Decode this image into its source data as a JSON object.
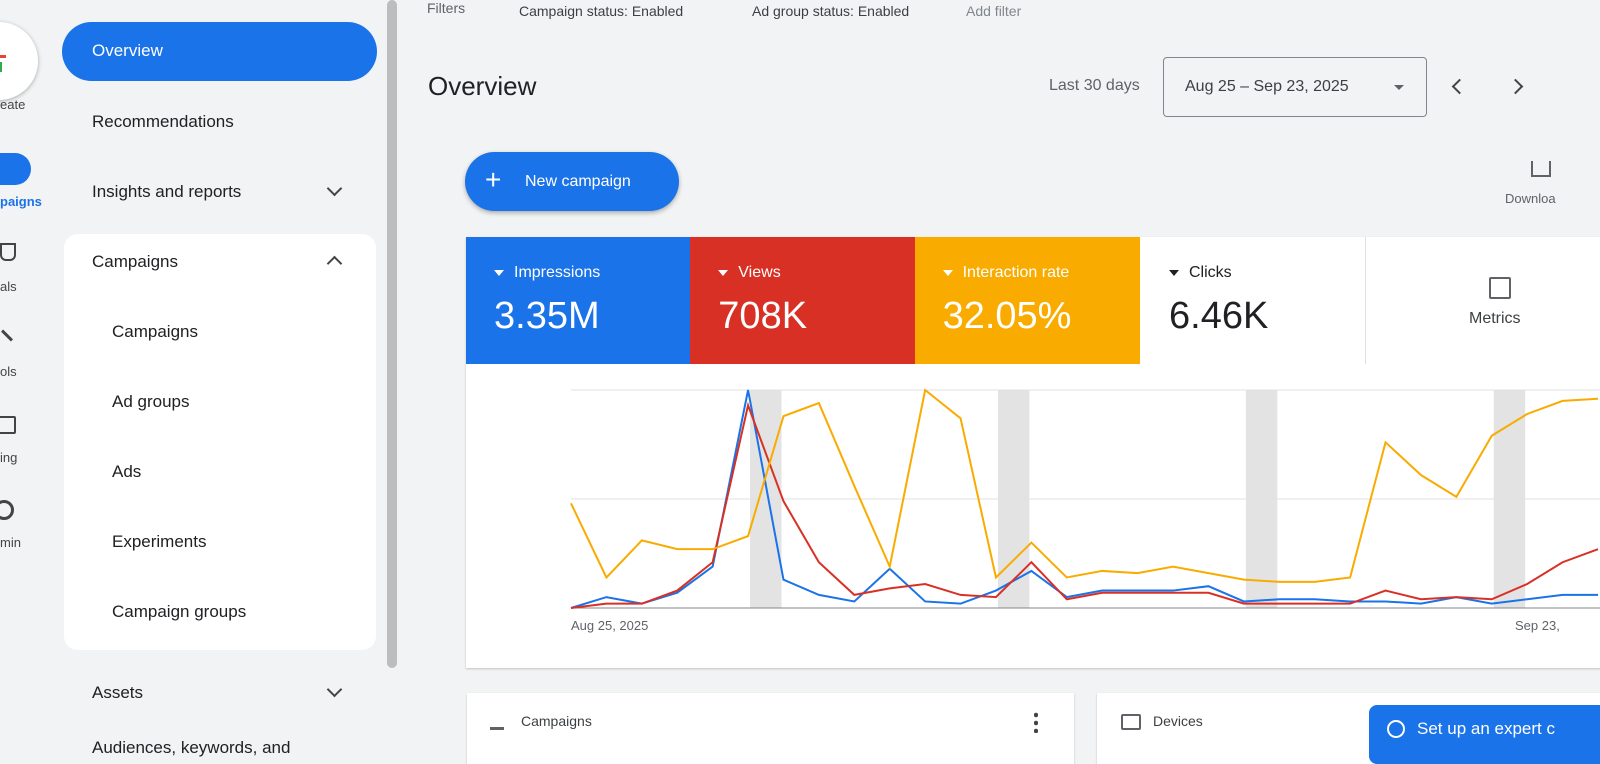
{
  "rail": {
    "items": [
      "eate",
      "paigns",
      "als",
      "ols",
      "ing",
      "min"
    ]
  },
  "nav": {
    "overview": "Overview",
    "recommendations": "Recommendations",
    "insights": "Insights and reports",
    "campaigns_group": "Campaigns",
    "sub_items": [
      "Campaigns",
      "Ad groups",
      "Ads",
      "Experiments",
      "Campaign groups"
    ],
    "assets": "Assets",
    "audiences": "Audiences, keywords, and"
  },
  "filters": {
    "label": "Filters",
    "chips": [
      "Campaign status: Enabled",
      "Ad group status: Enabled"
    ],
    "add": "Add filter"
  },
  "header": {
    "title": "Overview",
    "range_label": "Last 30 days",
    "date_range": "Aug 25 – Sep 23, 2025"
  },
  "actions": {
    "new_campaign": "New campaign",
    "download": "Downloa"
  },
  "scorecards": [
    {
      "name": "Clicks",
      "total": "6.46K"
    }
  ],
  "metrics_button": "Metrics",
  "chart_data": {
    "type": "line",
    "categories": [
      "Aug 25, 2025",
      null,
      null,
      null,
      null,
      null,
      null,
      null,
      null,
      null,
      null,
      null,
      null,
      null,
      null,
      null,
      null,
      null,
      null,
      null,
      null,
      null,
      null,
      null,
      null,
      null,
      null,
      null,
      null,
      "Sep 23,"
    ],
    "ylim": [
      0,
      100
    ],
    "series": [
      {
        "name": "Impressions",
        "total": "3.35M",
        "color": "#1a73e8",
        "values": [
          0,
          5,
          2,
          7,
          19,
          100,
          13,
          6,
          3,
          18,
          3,
          2,
          8,
          17,
          5,
          8,
          8,
          8,
          10,
          3,
          4,
          4,
          3,
          3,
          2,
          5,
          2,
          4,
          6,
          6
        ]
      },
      {
        "name": "Views",
        "total": "708K",
        "color": "#d93025",
        "values": [
          0,
          2,
          2,
          8,
          21,
          93,
          49,
          21,
          6,
          9,
          11,
          6,
          5,
          21,
          4,
          7,
          7,
          7,
          7,
          2,
          2,
          2,
          2,
          8,
          4,
          5,
          4,
          11,
          21,
          27
        ]
      },
      {
        "name": "Interaction rate",
        "total": "32.05%",
        "color": "#f9ab00",
        "values": [
          48,
          14,
          31,
          27,
          27,
          33,
          88,
          94,
          56,
          19,
          100,
          87,
          14,
          30,
          14,
          17,
          16,
          19,
          16,
          13,
          12,
          12,
          14,
          76,
          61,
          51,
          79,
          89,
          95,
          96
        ]
      }
    ]
  },
  "cards": [
    "Campaigns",
    "Devices"
  ],
  "expert_button": "Set up an expert c"
}
